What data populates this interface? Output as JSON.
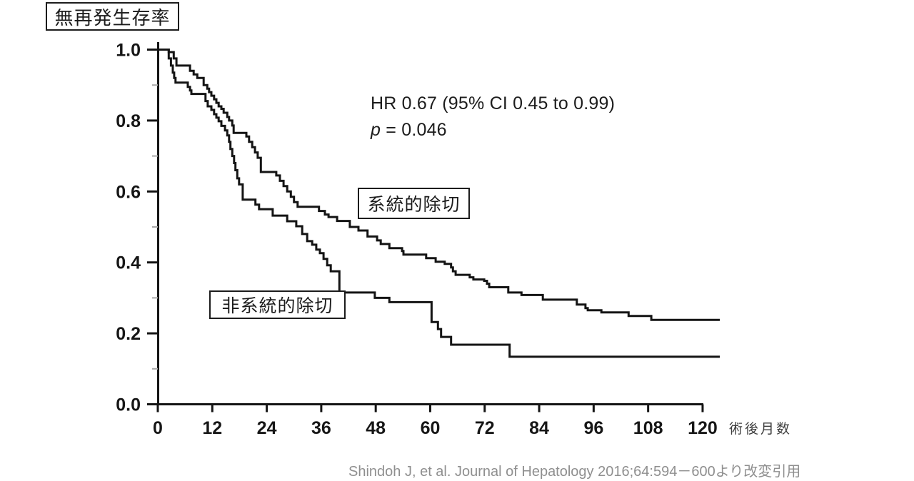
{
  "chart_data": {
    "type": "line",
    "variant": "kaplan_meier_step",
    "title_box": "無再発生存率",
    "x_axis": {
      "label": "術後月数",
      "tick_values": [
        0,
        12,
        24,
        36,
        48,
        60,
        72,
        84,
        96,
        108,
        120
      ],
      "range": [
        0,
        124
      ],
      "grid": false
    },
    "y_axis": {
      "tick_labels": [
        "1.0",
        "0.8",
        "0.6",
        "0.4",
        "0.2",
        "0.0"
      ],
      "tick_values": [
        1.0,
        0.8,
        0.6,
        0.4,
        0.2,
        0.0
      ],
      "minor_tick_values": [
        0.9,
        0.7,
        0.5,
        0.3,
        0.1
      ],
      "range": [
        0,
        1.0
      ],
      "grid": false
    },
    "annotation": {
      "hr_line": "HR 0.67 (95% CI 0.45 to 0.99)",
      "p_symbol": "p",
      "p_value": "= 0.046"
    },
    "series": [
      {
        "name": "systematic_resection",
        "label": "系統的除切",
        "points": [
          [
            0,
            1.0
          ],
          [
            2.4,
            0.993
          ],
          [
            3.5,
            0.975
          ],
          [
            4.1,
            0.955
          ],
          [
            7.1,
            0.94
          ],
          [
            7.9,
            0.93
          ],
          [
            8.7,
            0.92
          ],
          [
            10.1,
            0.9
          ],
          [
            10.9,
            0.89
          ],
          [
            11.3,
            0.88
          ],
          [
            11.8,
            0.87
          ],
          [
            12.4,
            0.86
          ],
          [
            12.9,
            0.85
          ],
          [
            13.4,
            0.84
          ],
          [
            14.0,
            0.833
          ],
          [
            14.5,
            0.822
          ],
          [
            15.3,
            0.81
          ],
          [
            15.7,
            0.8
          ],
          [
            16.4,
            0.786
          ],
          [
            16.7,
            0.765
          ],
          [
            19.5,
            0.755
          ],
          [
            20.1,
            0.74
          ],
          [
            20.8,
            0.725
          ],
          [
            21.4,
            0.71
          ],
          [
            22.0,
            0.695
          ],
          [
            22.7,
            0.655
          ],
          [
            26.1,
            0.645
          ],
          [
            26.9,
            0.63
          ],
          [
            27.7,
            0.615
          ],
          [
            28.5,
            0.6
          ],
          [
            29.3,
            0.585
          ],
          [
            30.0,
            0.57
          ],
          [
            30.8,
            0.557
          ],
          [
            35.5,
            0.545
          ],
          [
            36.8,
            0.535
          ],
          [
            37.6,
            0.528
          ],
          [
            39.5,
            0.517
          ],
          [
            42.3,
            0.5
          ],
          [
            44.2,
            0.49
          ],
          [
            46.2,
            0.473
          ],
          [
            48.3,
            0.462
          ],
          [
            49.1,
            0.452
          ],
          [
            51.0,
            0.44
          ],
          [
            53.8,
            0.432
          ],
          [
            54.1,
            0.422
          ],
          [
            59.1,
            0.412
          ],
          [
            61.2,
            0.402
          ],
          [
            63.2,
            0.396
          ],
          [
            64.6,
            0.386
          ],
          [
            65.0,
            0.375
          ],
          [
            65.6,
            0.365
          ],
          [
            68.7,
            0.358
          ],
          [
            69.5,
            0.352
          ],
          [
            71.9,
            0.348
          ],
          [
            72.5,
            0.34
          ],
          [
            73.0,
            0.33
          ],
          [
            77.2,
            0.315
          ],
          [
            80.1,
            0.308
          ],
          [
            84.8,
            0.295
          ],
          [
            92.3,
            0.281
          ],
          [
            94.2,
            0.271
          ],
          [
            94.7,
            0.265
          ],
          [
            97.7,
            0.259
          ],
          [
            103.7,
            0.249
          ],
          [
            108.7,
            0.238
          ],
          [
            123.8,
            0.238
          ]
        ]
      },
      {
        "name": "non_systematic_resection",
        "label": "非系統的除切",
        "points": [
          [
            0,
            1.0
          ],
          [
            2.4,
            0.975
          ],
          [
            2.9,
            0.955
          ],
          [
            3.3,
            0.935
          ],
          [
            3.6,
            0.92
          ],
          [
            3.9,
            0.907
          ],
          [
            6.6,
            0.895
          ],
          [
            7.1,
            0.885
          ],
          [
            7.4,
            0.875
          ],
          [
            10.5,
            0.855
          ],
          [
            11.0,
            0.84
          ],
          [
            11.8,
            0.83
          ],
          [
            12.4,
            0.818
          ],
          [
            12.9,
            0.808
          ],
          [
            13.4,
            0.798
          ],
          [
            14.0,
            0.785
          ],
          [
            14.8,
            0.772
          ],
          [
            15.3,
            0.758
          ],
          [
            15.7,
            0.74
          ],
          [
            16.0,
            0.72
          ],
          [
            16.4,
            0.7
          ],
          [
            16.8,
            0.68
          ],
          [
            17.1,
            0.66
          ],
          [
            17.5,
            0.637
          ],
          [
            17.9,
            0.62
          ],
          [
            18.7,
            0.577
          ],
          [
            21.5,
            0.563
          ],
          [
            22.3,
            0.55
          ],
          [
            25.3,
            0.532
          ],
          [
            28.5,
            0.516
          ],
          [
            30.5,
            0.502
          ],
          [
            31.8,
            0.48
          ],
          [
            32.9,
            0.46
          ],
          [
            34.0,
            0.45
          ],
          [
            34.9,
            0.436
          ],
          [
            35.7,
            0.426
          ],
          [
            36.5,
            0.41
          ],
          [
            37.3,
            0.392
          ],
          [
            38.1,
            0.375
          ],
          [
            40.0,
            0.315
          ],
          [
            47.8,
            0.3
          ],
          [
            51.0,
            0.288
          ],
          [
            60.3,
            0.232
          ],
          [
            61.7,
            0.212
          ],
          [
            62.4,
            0.19
          ],
          [
            64.6,
            0.168
          ],
          [
            77.5,
            0.134
          ],
          [
            123.8,
            0.134
          ]
        ]
      }
    ]
  },
  "citation": "Shindoh J, et al. Journal of Hepatology 2016;64:594－600より改変引用",
  "colors": {
    "curve": "#141414",
    "axis": "#141414",
    "minor_tick": "#a8a8a8",
    "tick_label": "#161616",
    "xaxis_title": "#3f3f3f",
    "citation": "#8f8f8f"
  }
}
